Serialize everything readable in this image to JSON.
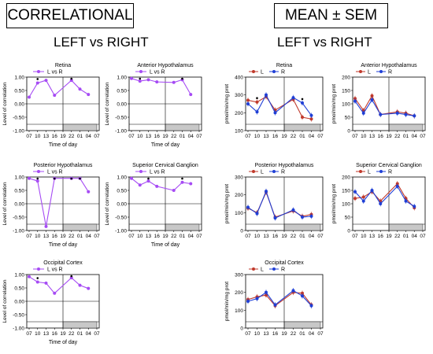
{
  "header_left": {
    "title": "CORRELATIONAL",
    "subtitle": "LEFT vs RIGHT"
  },
  "header_right": {
    "title": "MEAN ± SEM",
    "subtitle": "LEFT vs RIGHT"
  },
  "colors": {
    "corr": "#a64bf4",
    "L": "#c0392b",
    "R": "#1f3fd6"
  },
  "chart_data": [
    {
      "type": "line",
      "title": "Retina",
      "legend": [
        "L vs R"
      ],
      "ylabel": "Level of correlation",
      "xlabel": "Time of day",
      "categories": [
        "07",
        "10",
        "13",
        "16",
        "19",
        "22",
        "01",
        "04",
        "07"
      ],
      "ylim": [
        -1,
        1
      ],
      "yticks": [
        "1.00",
        "0.50",
        "0.00",
        "-0.50",
        "-1.00"
      ],
      "series": [
        {
          "name": "L vs R",
          "x": [
            0,
            1,
            2,
            3,
            5,
            6,
            7
          ],
          "values": [
            0.25,
            0.78,
            0.88,
            0.32,
            0.88,
            0.55,
            0.35
          ]
        }
      ],
      "sig": [
        1,
        5
      ]
    },
    {
      "type": "line",
      "title": "Anterior  Hypothalamus",
      "legend": [
        "L vs R"
      ],
      "ylabel": "Level of correlation",
      "xlabel": "Time of day",
      "categories": [
        "07",
        "10",
        "13",
        "16",
        "19",
        "22",
        "01",
        "04",
        "07"
      ],
      "ylim": [
        -1,
        1
      ],
      "yticks": [
        "1.00",
        "0.50",
        "0.00",
        "-0.50",
        "-1.00"
      ],
      "series": [
        {
          "name": "L vs R",
          "x": [
            0,
            1,
            2,
            3,
            5,
            6,
            7
          ],
          "values": [
            0.95,
            0.85,
            0.9,
            0.82,
            0.8,
            0.9,
            0.35
          ]
        }
      ],
      "sig": [
        1,
        6
      ]
    },
    {
      "type": "line",
      "title": "Posterior  Hypothalamus",
      "legend": [
        "L vs R"
      ],
      "ylabel": "Level of correlation",
      "xlabel": "Time of day",
      "categories": [
        "07",
        "10",
        "13",
        "16",
        "19",
        "22",
        "01",
        "04",
        "07"
      ],
      "ylim": [
        -1,
        1
      ],
      "yticks": [
        "1.00",
        "0.50",
        "0.00",
        "-0.50",
        "-1.00"
      ],
      "series": [
        {
          "name": "L vs R",
          "x": [
            0,
            1,
            2,
            3,
            5,
            6,
            7
          ],
          "values": [
            0.95,
            0.85,
            -0.85,
            0.95,
            0.95,
            0.95,
            0.45
          ]
        }
      ],
      "sig": [
        1,
        3,
        5,
        6
      ]
    },
    {
      "type": "line",
      "title": "Superior Cervical Ganglion",
      "legend": [
        "L vs R"
      ],
      "ylabel": "Level of correlation",
      "xlabel": "Time of day",
      "categories": [
        "07",
        "10",
        "13",
        "16",
        "19",
        "22",
        "01",
        "04",
        "07"
      ],
      "ylim": [
        -1,
        1
      ],
      "yticks": [
        "1.00",
        "0.50",
        "0.00",
        "-0.50",
        "-1.00"
      ],
      "series": [
        {
          "name": "L vs R",
          "x": [
            0,
            1,
            2,
            3,
            5,
            6,
            7
          ],
          "values": [
            0.95,
            0.7,
            0.85,
            0.65,
            0.5,
            0.8,
            0.75
          ]
        }
      ],
      "sig": [
        2,
        6
      ]
    },
    {
      "type": "line",
      "title": "Occipital Cortex",
      "legend": [
        "L vs R"
      ],
      "ylabel": "Level of correlation",
      "xlabel": "Time of day",
      "categories": [
        "07",
        "10",
        "13",
        "16",
        "19",
        "22",
        "01",
        "04",
        "07"
      ],
      "ylim": [
        -1,
        1
      ],
      "yticks": [
        "1.00",
        "0.50",
        "0.00",
        "-0.50",
        "-1.00"
      ],
      "series": [
        {
          "name": "L vs R",
          "x": [
            0,
            1,
            2,
            3,
            5,
            6,
            7
          ],
          "values": [
            0.92,
            0.72,
            0.68,
            0.3,
            0.88,
            0.6,
            0.48
          ]
        }
      ],
      "sig": [
        1,
        5
      ]
    },
    {
      "type": "line",
      "title": "Retina",
      "legend": [
        "L",
        "R"
      ],
      "ylabel": "pmol/min/mg prot",
      "xlabel": "",
      "categories": [
        "07",
        "10",
        "13",
        "16",
        "19",
        "22",
        "01",
        "04",
        "07"
      ],
      "ylim": [
        100,
        400
      ],
      "yticks": [
        "400",
        "300",
        "200",
        "100"
      ],
      "series": [
        {
          "name": "L",
          "x": [
            0,
            1,
            2,
            3,
            5,
            6,
            7
          ],
          "values": [
            270,
            260,
            290,
            215,
            275,
            175,
            165
          ]
        },
        {
          "name": "R",
          "x": [
            0,
            1,
            2,
            3,
            5,
            6,
            7
          ],
          "values": [
            250,
            205,
            300,
            200,
            285,
            255,
            185
          ]
        }
      ],
      "sig": [
        1,
        6
      ]
    },
    {
      "type": "line",
      "title": "Anterior  Hypothalamus",
      "legend": [
        "L",
        "R"
      ],
      "ylabel": "pmol/min/mg  prot",
      "xlabel": "",
      "categories": [
        "07",
        "10",
        "13",
        "16",
        "19",
        "22",
        "01",
        "04",
        "07"
      ],
      "ylim": [
        0,
        200
      ],
      "yticks": [
        "200",
        "150",
        "100",
        "50",
        "0"
      ],
      "series": [
        {
          "name": "L",
          "x": [
            0,
            1,
            2,
            3,
            5,
            6,
            7
          ],
          "values": [
            120,
            75,
            130,
            60,
            70,
            65,
            55
          ]
        },
        {
          "name": "R",
          "x": [
            0,
            1,
            2,
            3,
            5,
            6,
            7
          ],
          "values": [
            110,
            65,
            115,
            60,
            65,
            60,
            55
          ]
        }
      ],
      "sig": []
    },
    {
      "type": "line",
      "title": "Posterior  Hypothalamus",
      "legend": [
        "L",
        "R"
      ],
      "ylabel": "pmol/min/mg prot",
      "xlabel": "",
      "categories": [
        "07",
        "10",
        "13",
        "16",
        "19",
        "22",
        "01",
        "04",
        "07"
      ],
      "ylim": [
        0,
        300
      ],
      "yticks": [
        "300",
        "200",
        "100",
        "0"
      ],
      "series": [
        {
          "name": "L",
          "x": [
            0,
            1,
            2,
            3,
            5,
            6,
            7
          ],
          "values": [
            125,
            100,
            215,
            75,
            110,
            80,
            90
          ]
        },
        {
          "name": "R",
          "x": [
            0,
            1,
            2,
            3,
            5,
            6,
            7
          ],
          "values": [
            130,
            95,
            220,
            70,
            115,
            75,
            80
          ]
        }
      ],
      "sig": []
    },
    {
      "type": "line",
      "title": "Superior Cervical Ganglion",
      "legend": [
        "L",
        "R"
      ],
      "ylabel": "pmol/min/mg prot",
      "xlabel": "",
      "categories": [
        "07",
        "10",
        "13",
        "16",
        "19",
        "22",
        "01",
        "04",
        "07"
      ],
      "ylim": [
        0,
        200
      ],
      "yticks": [
        "200",
        "150",
        "100",
        "50",
        "0"
      ],
      "series": [
        {
          "name": "L",
          "x": [
            0,
            1,
            2,
            3,
            5,
            6,
            7
          ],
          "values": [
            120,
            125,
            145,
            110,
            175,
            120,
            85
          ]
        },
        {
          "name": "R",
          "x": [
            0,
            1,
            2,
            3,
            5,
            6,
            7
          ],
          "values": [
            145,
            110,
            150,
            100,
            165,
            110,
            90
          ]
        }
      ],
      "sig": []
    },
    {
      "type": "line",
      "title": "Occipital Cortex",
      "legend": [
        "L",
        "R"
      ],
      "ylabel": "pmol/min/mg prot",
      "xlabel": "",
      "categories": [
        "07",
        "10",
        "13",
        "16",
        "19",
        "22",
        "01",
        "04",
        "07"
      ],
      "ylim": [
        0,
        300
      ],
      "yticks": [
        "300",
        "200",
        "100",
        "0"
      ],
      "series": [
        {
          "name": "L",
          "x": [
            0,
            1,
            2,
            3,
            5,
            6,
            7
          ],
          "values": [
            160,
            175,
            185,
            125,
            200,
            195,
            130
          ]
        },
        {
          "name": "R",
          "x": [
            0,
            1,
            2,
            3,
            5,
            6,
            7
          ],
          "values": [
            150,
            165,
            200,
            130,
            210,
            180,
            125
          ]
        }
      ],
      "sig": []
    }
  ]
}
